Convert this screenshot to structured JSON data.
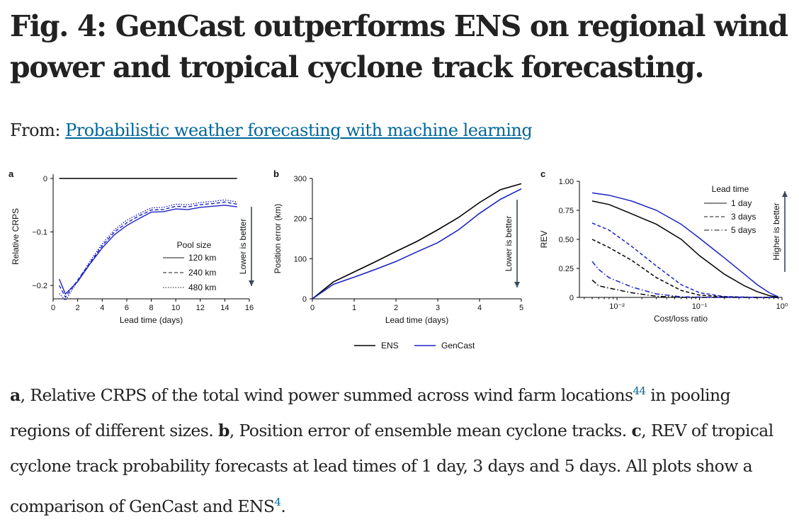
{
  "title": "Fig. 4: GenCast outperforms ENS on regional wind power and tropical cyclone track forecasting.",
  "from_label": "From:",
  "from_link": "Probabilistic weather forecasting with machine learning",
  "caption": {
    "a_letter": "a",
    "a_text": ", Relative CRPS of the total wind power summed across wind farm locations",
    "a_ref": "44",
    "a_text2": " in pooling regions of different sizes. ",
    "b_letter": "b",
    "b_text": ", Position error of ensemble mean cyclone tracks. ",
    "c_letter": "c",
    "c_text": ", REV of tropical cyclone track probability forecasts at lead times of 1 day, 3 days and 5 days. All plots show a comparison of GenCast and ENS",
    "c_ref": "4",
    "c_end": "."
  },
  "colors": {
    "ens": "#000000",
    "gencast": "#1c22c4",
    "arrow": "#39485a"
  },
  "shared_legend": [
    "ENS",
    "GenCast"
  ],
  "chart_data": [
    {
      "panel": "a",
      "type": "line",
      "xlabel": "Lead time (days)",
      "ylabel": "Relative CRPS",
      "xlim": [
        0,
        16
      ],
      "ylim": [
        -0.225,
        0.008
      ],
      "xticks": [
        0,
        2,
        4,
        6,
        8,
        10,
        12,
        14,
        16
      ],
      "yticks": [
        0,
        -0.1,
        -0.2
      ],
      "ytick_labels": [
        "0",
        "−0.1",
        "−0.2"
      ],
      "annotation": "Lower is better",
      "legend_title": "Pool size",
      "baseline": {
        "x": [
          0.5,
          15
        ],
        "y": 0
      },
      "series": [
        {
          "name": "120 km",
          "dash": "solid",
          "x": [
            0.5,
            1,
            2,
            3,
            4,
            5,
            6,
            7,
            8,
            9,
            10,
            11,
            12,
            13,
            14,
            15
          ],
          "y": [
            -0.188,
            -0.216,
            -0.193,
            -0.16,
            -0.13,
            -0.105,
            -0.088,
            -0.075,
            -0.063,
            -0.062,
            -0.057,
            -0.058,
            -0.054,
            -0.052,
            -0.05,
            -0.053
          ]
        },
        {
          "name": "240 km",
          "dash": "dashed",
          "x": [
            0.5,
            1,
            2,
            3,
            4,
            5,
            6,
            7,
            8,
            9,
            10,
            11,
            12,
            13,
            14,
            15
          ],
          "y": [
            -0.2,
            -0.222,
            -0.19,
            -0.158,
            -0.126,
            -0.1,
            -0.083,
            -0.07,
            -0.059,
            -0.058,
            -0.052,
            -0.053,
            -0.049,
            -0.047,
            -0.044,
            -0.048
          ]
        },
        {
          "name": "480 km",
          "dash": "dotted",
          "x": [
            0.5,
            1,
            2,
            3,
            4,
            5,
            6,
            7,
            8,
            9,
            10,
            11,
            12,
            13,
            14,
            15
          ],
          "y": [
            -0.215,
            -0.228,
            -0.192,
            -0.155,
            -0.122,
            -0.096,
            -0.078,
            -0.066,
            -0.055,
            -0.054,
            -0.048,
            -0.049,
            -0.045,
            -0.043,
            -0.04,
            -0.044
          ]
        }
      ]
    },
    {
      "panel": "b",
      "type": "line",
      "xlabel": "Lead time (days)",
      "ylabel": "Position error (km)",
      "xlim": [
        0,
        5
      ],
      "ylim": [
        0,
        300
      ],
      "xticks": [
        0,
        1,
        2,
        3,
        4,
        5
      ],
      "yticks": [
        0,
        100,
        200,
        300
      ],
      "annotation": "Lower is better",
      "series": [
        {
          "name": "ENS",
          "x": [
            0,
            0.5,
            1,
            1.5,
            2,
            2.5,
            3,
            3.5,
            4,
            4.5,
            5
          ],
          "y": [
            0,
            42,
            67,
            92,
            118,
            143,
            172,
            203,
            240,
            272,
            287
          ]
        },
        {
          "name": "GenCast",
          "x": [
            0,
            0.5,
            1,
            1.5,
            2,
            2.5,
            3,
            3.5,
            4,
            4.5,
            5
          ],
          "y": [
            0,
            36,
            54,
            73,
            93,
            117,
            140,
            172,
            213,
            248,
            274
          ]
        }
      ]
    },
    {
      "panel": "c",
      "type": "line",
      "xlabel": "Cost/loss ratio",
      "ylabel": "REV",
      "xscale": "log",
      "xlim": [
        0.0035,
        1
      ],
      "ylim": [
        0,
        1
      ],
      "xticks": [
        0.01,
        0.1,
        1
      ],
      "xtick_labels": [
        "10⁻²",
        "10⁻¹",
        "10⁰"
      ],
      "yticks": [
        0,
        0.25,
        0.5,
        0.75,
        1
      ],
      "ytick_labels": [
        "0",
        "0.25",
        "0.50",
        "0.75",
        "1.00"
      ],
      "annotation": "Higher is better",
      "legend_title": "Lead time",
      "legend_entries": [
        "1 day",
        "3 days",
        "5 days"
      ],
      "series": [
        {
          "model": "ENS",
          "lead": "1 day",
          "dash": "solid",
          "x": [
            0.005,
            0.008,
            0.015,
            0.03,
            0.06,
            0.1,
            0.2,
            0.35,
            0.5,
            0.7,
            0.9
          ],
          "y": [
            0.83,
            0.8,
            0.72,
            0.63,
            0.5,
            0.36,
            0.2,
            0.1,
            0.05,
            0.015,
            0.003
          ]
        },
        {
          "model": "GenCast",
          "lead": "1 day",
          "dash": "solid",
          "x": [
            0.005,
            0.008,
            0.015,
            0.03,
            0.06,
            0.1,
            0.2,
            0.35,
            0.5,
            0.7,
            0.9
          ],
          "y": [
            0.9,
            0.88,
            0.83,
            0.75,
            0.63,
            0.51,
            0.34,
            0.2,
            0.11,
            0.04,
            0.005
          ]
        },
        {
          "model": "ENS",
          "lead": "3 days",
          "dash": "dashed",
          "x": [
            0.005,
            0.008,
            0.015,
            0.03,
            0.06,
            0.1,
            0.2,
            0.5,
            0.9
          ],
          "y": [
            0.5,
            0.43,
            0.32,
            0.17,
            0.06,
            0.02,
            0.005,
            0.0,
            0.0
          ]
        },
        {
          "model": "GenCast",
          "lead": "3 days",
          "dash": "dashed",
          "x": [
            0.005,
            0.008,
            0.015,
            0.03,
            0.06,
            0.1,
            0.2,
            0.5,
            0.9
          ],
          "y": [
            0.64,
            0.58,
            0.44,
            0.27,
            0.11,
            0.04,
            0.008,
            0.0,
            0.0
          ]
        },
        {
          "model": "ENS",
          "lead": "5 days",
          "dash": "dashdot",
          "x": [
            0.005,
            0.006,
            0.008,
            0.015,
            0.03,
            0.06,
            0.2,
            0.9
          ],
          "y": [
            0.15,
            0.1,
            0.08,
            0.04,
            0.01,
            0.0,
            0.0,
            0.0
          ]
        },
        {
          "model": "GenCast",
          "lead": "5 days",
          "dash": "dashdot",
          "x": [
            0.005,
            0.006,
            0.008,
            0.015,
            0.03,
            0.06,
            0.2,
            0.9
          ],
          "y": [
            0.31,
            0.24,
            0.17,
            0.09,
            0.03,
            0.005,
            0.0,
            0.0
          ]
        }
      ]
    }
  ]
}
